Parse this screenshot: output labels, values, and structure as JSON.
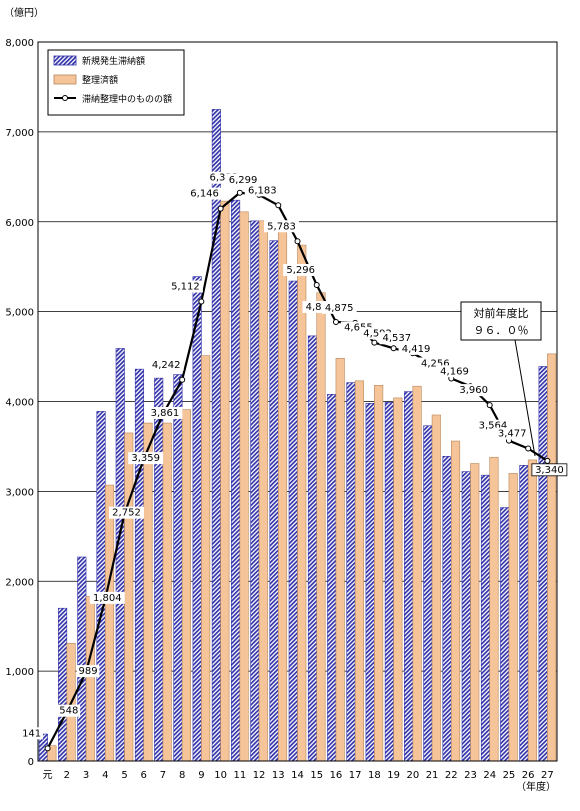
{
  "chart_data": {
    "type": "bar",
    "y_unit": "（億円）",
    "x_unit": "（年度）",
    "ylim": [
      0,
      8000
    ],
    "y_ticks": [
      "0",
      "1,000",
      "2,000",
      "3,000",
      "4,000",
      "5,000",
      "6,000",
      "7,000",
      "8,000"
    ],
    "categories": [
      "元",
      "2",
      "3",
      "4",
      "5",
      "6",
      "7",
      "8",
      "9",
      "10",
      "11",
      "12",
      "13",
      "14",
      "15",
      "16",
      "17",
      "18",
      "19",
      "20",
      "21",
      "22",
      "23",
      "24",
      "25",
      "26",
      "27"
    ],
    "series": [
      {
        "name": "新規発生滞納額",
        "type": "bar",
        "pattern": "diagonal-hatch",
        "color": "#3333aa",
        "values": [
          300,
          1700,
          2270,
          3890,
          4590,
          4360,
          4260,
          4300,
          5390,
          7250,
          6240,
          6010,
          5790,
          5340,
          4730,
          4080,
          4210,
          3980,
          3990,
          4110,
          3730,
          3390,
          3220,
          3180,
          2820,
          3290,
          4390
        ]
      },
      {
        "name": "整理済額",
        "type": "bar",
        "color": "#f5c499",
        "values": [
          170,
          1310,
          1830,
          3070,
          3650,
          3760,
          3760,
          3910,
          4510,
          6230,
          6110,
          6010,
          5900,
          5740,
          5210,
          4480,
          4230,
          4180,
          4040,
          4170,
          3850,
          3560,
          3310,
          3380,
          3200,
          3350,
          4530
        ]
      },
      {
        "name": "滞納整理中のものの額",
        "type": "line",
        "color": "#000000",
        "values": [
          141,
          548,
          989,
          1804,
          2752,
          3359,
          3861,
          4242,
          5112,
          6146,
          6323,
          6299,
          6183,
          5783,
          5296,
          4885,
          4875,
          4655,
          4592,
          4537,
          4419,
          4256,
          4169,
          3960,
          3564,
          3477,
          3340
        ],
        "labels": [
          "141",
          "548",
          "989",
          "1,804",
          "2,752",
          "3,359",
          "3,861",
          "4,242",
          "5,112",
          "6,146",
          "6,323",
          "6,299",
          "6,183",
          "5,783",
          "5,296",
          "4,885",
          "4,875",
          "4,655",
          "4,592",
          "4,537",
          "4,419",
          "4,256",
          "4,169",
          "3,960",
          "3,564",
          "3,477",
          "3,340"
        ]
      }
    ],
    "callout": {
      "line1": "対前年度比",
      "line2": "９６．０％"
    },
    "legend_position": "top-left",
    "grid": true
  }
}
